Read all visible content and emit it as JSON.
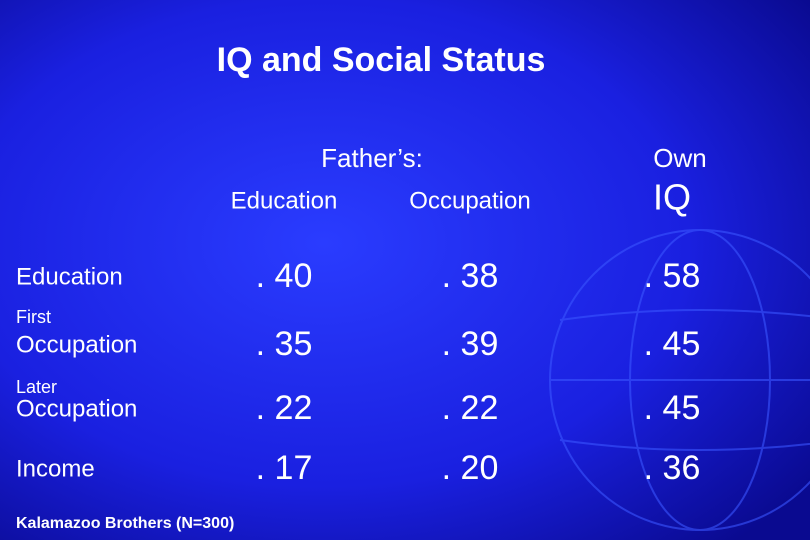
{
  "title": "IQ and Social Status",
  "table": {
    "group_header": "Father’s:",
    "columns": [
      {
        "label": "Education"
      },
      {
        "label": "Occupation"
      },
      {
        "prefix": "Own",
        "label": "IQ"
      }
    ],
    "rows": [
      {
        "label": "Education",
        "values": [
          ". 40",
          ". 38",
          ". 58"
        ]
      },
      {
        "prefix": "First",
        "label": "Occupation",
        "values": [
          ". 35",
          ". 39",
          ". 45"
        ]
      },
      {
        "prefix": "Later",
        "label": "Occupation",
        "values": [
          ". 22",
          ". 22",
          ". 45"
        ]
      },
      {
        "label": "Income",
        "values": [
          ". 17",
          ". 20",
          ". 36"
        ]
      }
    ]
  },
  "footer": "Kalamazoo Brothers (N=300)"
}
